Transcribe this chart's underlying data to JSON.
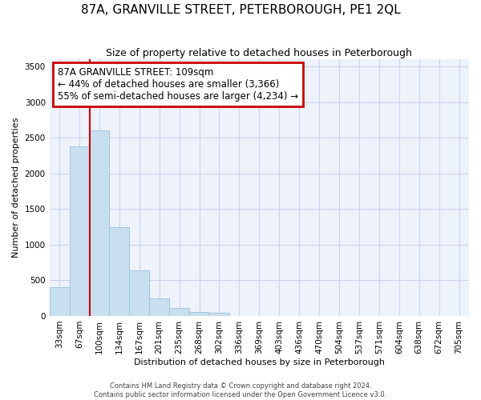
{
  "title": "87A, GRANVILLE STREET, PETERBOROUGH, PE1 2QL",
  "subtitle": "Size of property relative to detached houses in Peterborough",
  "xlabel": "Distribution of detached houses by size in Peterborough",
  "ylabel": "Number of detached properties",
  "bar_labels": [
    "33sqm",
    "67sqm",
    "100sqm",
    "134sqm",
    "167sqm",
    "201sqm",
    "235sqm",
    "268sqm",
    "302sqm",
    "336sqm",
    "369sqm",
    "403sqm",
    "436sqm",
    "470sqm",
    "504sqm",
    "537sqm",
    "571sqm",
    "604sqm",
    "638sqm",
    "672sqm",
    "705sqm"
  ],
  "bar_heights": [
    400,
    2380,
    2600,
    1250,
    640,
    250,
    110,
    60,
    50,
    0,
    0,
    0,
    0,
    0,
    0,
    0,
    0,
    0,
    0,
    0,
    0
  ],
  "bar_color": "#c8dff0",
  "bar_edge_color": "#a0c4e0",
  "ylim": [
    0,
    3600
  ],
  "yticks": [
    0,
    500,
    1000,
    1500,
    2000,
    2500,
    3000,
    3500
  ],
  "red_line_bin": 2,
  "annotation_title": "87A GRANVILLE STREET: 109sqm",
  "annotation_line1": "← 44% of detached houses are smaller (3,366)",
  "annotation_line2": "55% of semi-detached houses are larger (4,234) →",
  "annotation_box_color": "#ffffff",
  "annotation_border_color": "#cc0000",
  "footer_line1": "Contains HM Land Registry data © Crown copyright and database right 2024.",
  "footer_line2": "Contains public sector information licensed under the Open Government Licence v3.0.",
  "bg_color": "#eef2fb",
  "grid_color": "#c8d4ee",
  "title_fontsize": 11,
  "subtitle_fontsize": 9,
  "axis_label_fontsize": 8,
  "tick_fontsize": 7.5,
  "footer_fontsize": 6
}
